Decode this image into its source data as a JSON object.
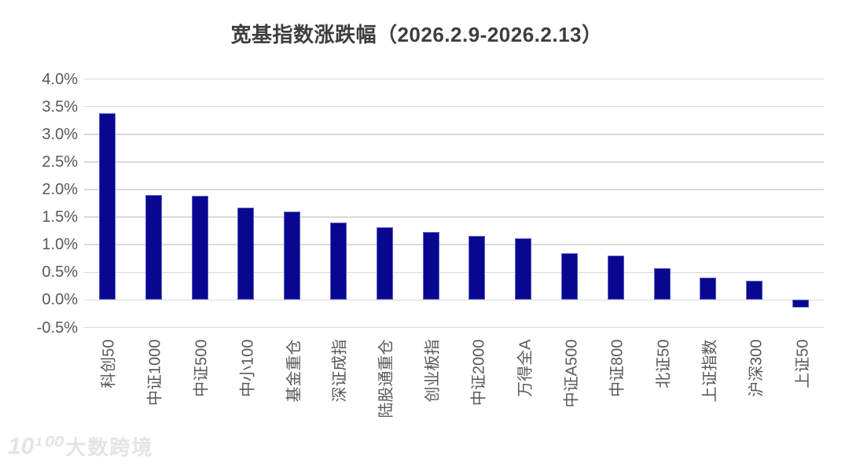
{
  "title": "宽基指数涨跌幅（2026.2.9-2026.2.13）",
  "watermark": {
    "logo": "10¹⁰⁰",
    "text": "大数跨境"
  },
  "colors": {
    "bar_fill": "#07078f",
    "bar_border": "#5e5ecb",
    "gridline": "#dadada",
    "axis_text": "#595959",
    "title_text": "#3e3e3e",
    "watermark_text": "#e4e4e4",
    "background": "#ffffff"
  },
  "chart_data": {
    "type": "bar",
    "title": "宽基指数涨跌幅（2026.2.9-2026.2.13）",
    "categories": [
      "科创50",
      "中证1000",
      "中证500",
      "中小100",
      "基金重仓",
      "深证成指",
      "陆股通重仓",
      "创业板指",
      "中证2000",
      "万得全A",
      "中证A500",
      "中证800",
      "北证50",
      "上证指数",
      "沪深300",
      "上证50"
    ],
    "values": [
      3.38,
      1.9,
      1.88,
      1.67,
      1.6,
      1.4,
      1.32,
      1.23,
      1.16,
      1.11,
      0.84,
      0.8,
      0.57,
      0.4,
      0.35,
      -0.13
    ],
    "value_unit": "%",
    "xlabel": "",
    "ylabel": "",
    "ylim": [
      -0.5,
      4.0
    ],
    "ytick_step": 0.5,
    "ytick_labels": [
      "4.0%",
      "3.5%",
      "3.0%",
      "2.5%",
      "2.0%",
      "1.5%",
      "1.0%",
      "0.5%",
      "0.0%",
      "-0.5%"
    ],
    "grid": true,
    "legend": false,
    "x_label_rotation": -90
  }
}
